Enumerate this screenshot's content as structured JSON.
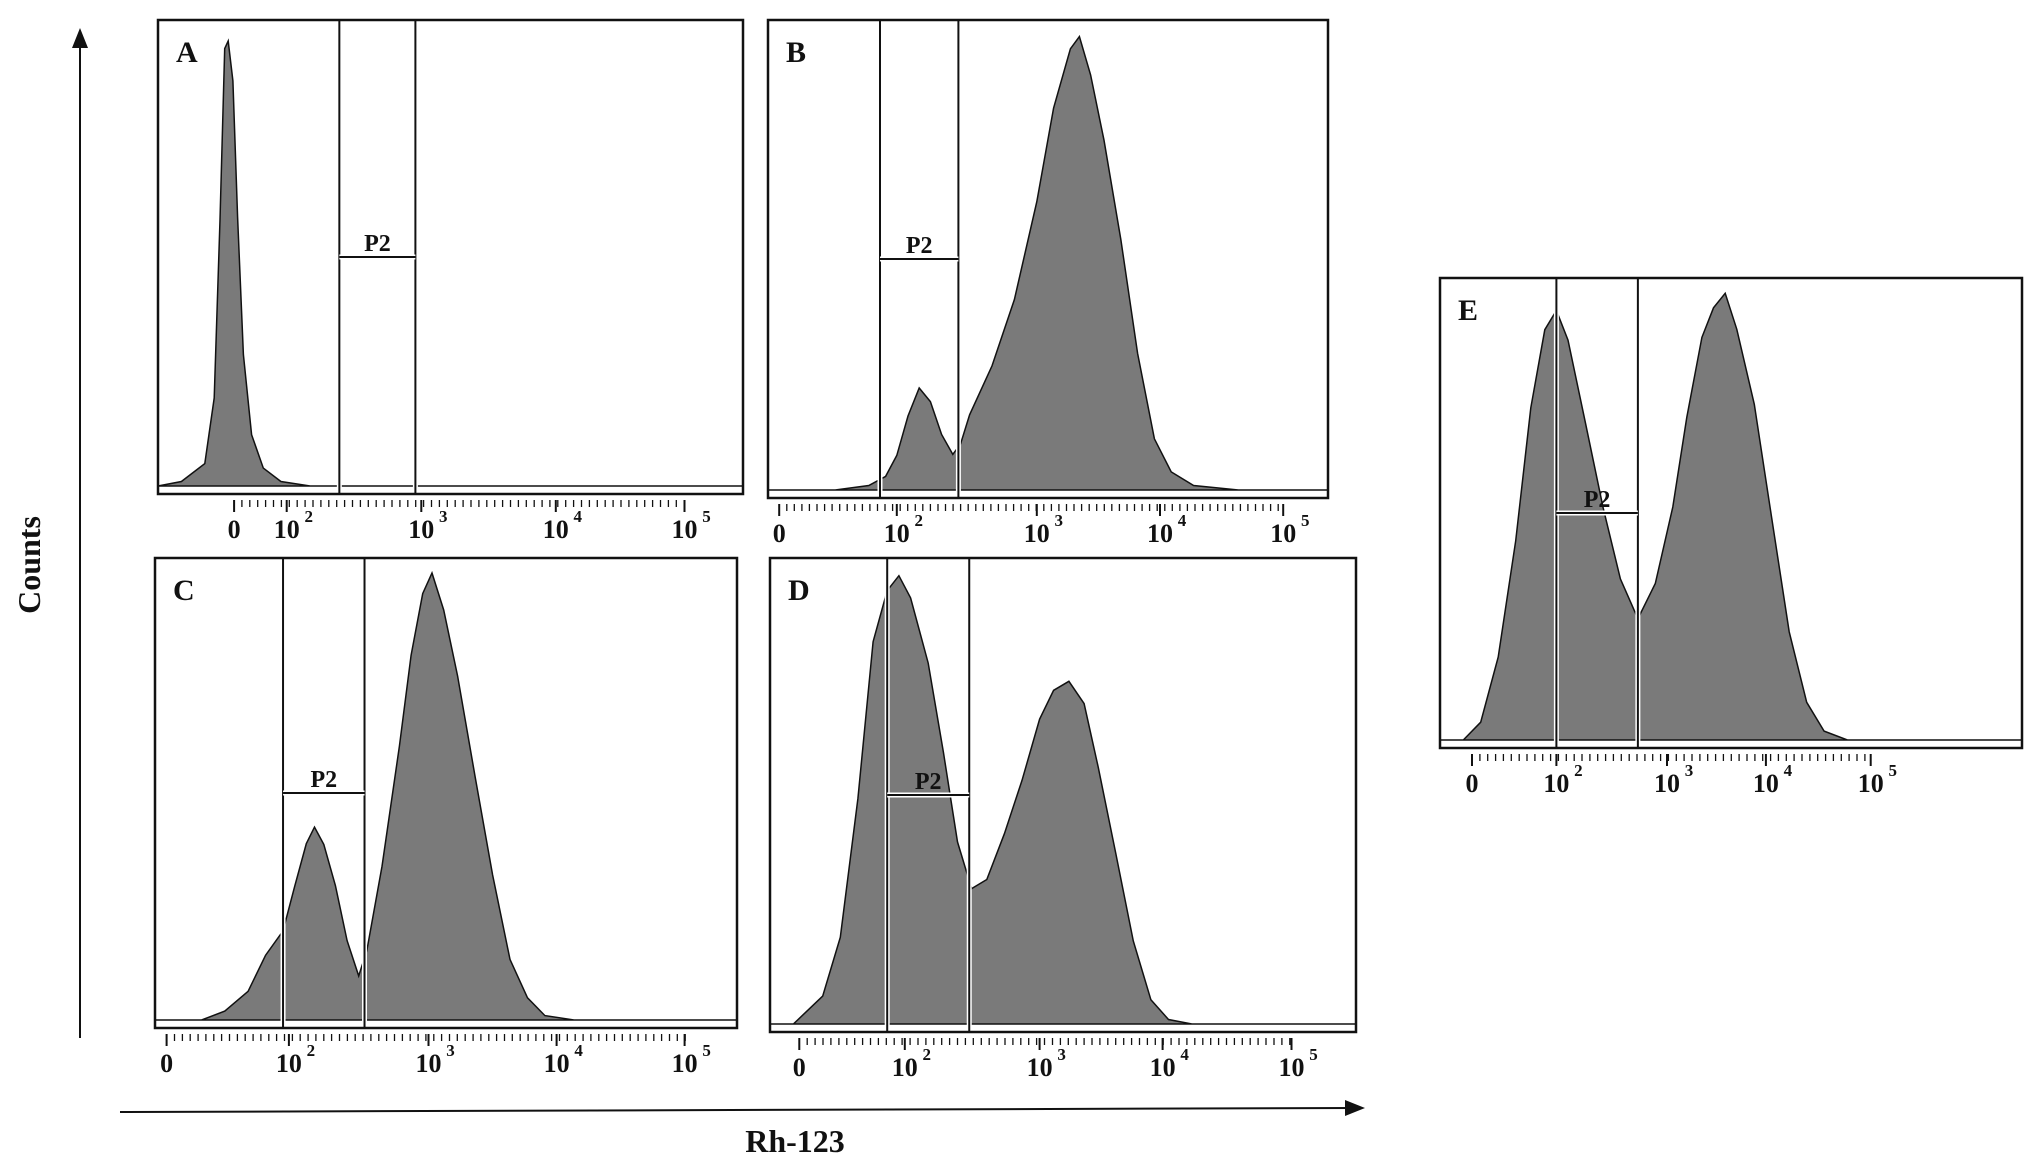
{
  "figure": {
    "xlabel": "Rh-123",
    "ylabel": "Counts"
  },
  "colors": {
    "fill": "#7a7a7a",
    "stroke": "#111111",
    "gate": "#111111"
  },
  "chart_data": [
    {
      "type": "area",
      "panel": "A",
      "gate_label": "P2",
      "x_ticks": [
        "0",
        "10",
        "10",
        "10",
        "10"
      ],
      "x_exponents": [
        "",
        "2",
        "3",
        "4",
        "5"
      ],
      "xlim": [
        0,
        5
      ],
      "ylim": [
        0,
        1
      ],
      "gate": {
        "x_range": [
          1.55,
          2.2
        ],
        "y": 0.5
      },
      "histogram": [
        [
          0.0,
          0.0
        ],
        [
          0.2,
          0.01
        ],
        [
          0.4,
          0.05
        ],
        [
          0.48,
          0.2
        ],
        [
          0.53,
          0.6
        ],
        [
          0.57,
          0.97
        ],
        [
          0.6,
          1.0
        ],
        [
          0.64,
          0.9
        ],
        [
          0.68,
          0.6
        ],
        [
          0.73,
          0.3
        ],
        [
          0.8,
          0.12
        ],
        [
          0.9,
          0.04
        ],
        [
          1.05,
          0.01
        ],
        [
          1.3,
          0.0
        ],
        [
          5.0,
          0.0
        ]
      ]
    },
    {
      "type": "area",
      "panel": "B",
      "gate_label": "P2",
      "x_ticks": [
        "0",
        "10",
        "10",
        "10",
        "10"
      ],
      "x_exponents": [
        "",
        "2",
        "3",
        "4",
        "5"
      ],
      "xlim": [
        0,
        5
      ],
      "ylim": [
        0,
        1
      ],
      "gate": {
        "x_range": [
          1.0,
          1.7
        ],
        "y": 0.5
      },
      "histogram": [
        [
          0.0,
          0.0
        ],
        [
          0.6,
          0.0
        ],
        [
          0.9,
          0.01
        ],
        [
          1.05,
          0.03
        ],
        [
          1.15,
          0.07
        ],
        [
          1.25,
          0.17
        ],
        [
          1.35,
          0.22
        ],
        [
          1.45,
          0.2
        ],
        [
          1.55,
          0.12
        ],
        [
          1.65,
          0.08
        ],
        [
          1.72,
          0.1
        ],
        [
          1.8,
          0.16
        ],
        [
          2.0,
          0.27
        ],
        [
          2.2,
          0.42
        ],
        [
          2.4,
          0.64
        ],
        [
          2.55,
          0.85
        ],
        [
          2.7,
          0.97
        ],
        [
          2.78,
          1.0
        ],
        [
          2.88,
          0.92
        ],
        [
          3.0,
          0.78
        ],
        [
          3.15,
          0.55
        ],
        [
          3.3,
          0.3
        ],
        [
          3.45,
          0.12
        ],
        [
          3.6,
          0.04
        ],
        [
          3.8,
          0.01
        ],
        [
          4.2,
          0.0
        ],
        [
          5.0,
          0.0
        ]
      ]
    },
    {
      "type": "area",
      "panel": "C",
      "gate_label": "P2",
      "x_ticks": [
        "0",
        "10",
        "10",
        "10",
        "10"
      ],
      "x_exponents": [
        "",
        "2",
        "3",
        "4",
        "5"
      ],
      "xlim": [
        0,
        5
      ],
      "ylim": [
        0,
        1
      ],
      "gate": {
        "x_range": [
          1.1,
          1.8
        ],
        "y": 0.5
      },
      "histogram": [
        [
          0.0,
          0.0
        ],
        [
          0.4,
          0.0
        ],
        [
          0.6,
          0.02
        ],
        [
          0.8,
          0.07
        ],
        [
          0.95,
          0.14
        ],
        [
          1.1,
          0.2
        ],
        [
          1.2,
          0.3
        ],
        [
          1.3,
          0.4
        ],
        [
          1.37,
          0.44
        ],
        [
          1.45,
          0.4
        ],
        [
          1.55,
          0.3
        ],
        [
          1.65,
          0.18
        ],
        [
          1.75,
          0.1
        ],
        [
          1.82,
          0.16
        ],
        [
          1.95,
          0.35
        ],
        [
          2.1,
          0.62
        ],
        [
          2.2,
          0.82
        ],
        [
          2.3,
          0.96
        ],
        [
          2.38,
          1.0
        ],
        [
          2.48,
          0.93
        ],
        [
          2.6,
          0.78
        ],
        [
          2.75,
          0.55
        ],
        [
          2.9,
          0.32
        ],
        [
          3.05,
          0.14
        ],
        [
          3.2,
          0.05
        ],
        [
          3.35,
          0.01
        ],
        [
          3.6,
          0.0
        ],
        [
          5.0,
          0.0
        ]
      ]
    },
    {
      "type": "area",
      "panel": "D",
      "gate_label": "P2",
      "x_ticks": [
        "0",
        "10",
        "10",
        "10",
        "10"
      ],
      "x_exponents": [
        "",
        "2",
        "3",
        "4",
        "5"
      ],
      "xlim": [
        0,
        5
      ],
      "ylim": [
        0,
        1
      ],
      "gate": {
        "x_range": [
          1.0,
          1.7
        ],
        "y": 0.5
      },
      "histogram": [
        [
          0.0,
          0.0
        ],
        [
          0.2,
          0.0
        ],
        [
          0.45,
          0.06
        ],
        [
          0.6,
          0.2
        ],
        [
          0.75,
          0.5
        ],
        [
          0.88,
          0.85
        ],
        [
          1.0,
          0.97
        ],
        [
          1.1,
          1.0
        ],
        [
          1.2,
          0.95
        ],
        [
          1.35,
          0.8
        ],
        [
          1.48,
          0.6
        ],
        [
          1.6,
          0.4
        ],
        [
          1.72,
          0.3
        ],
        [
          1.85,
          0.32
        ],
        [
          2.0,
          0.42
        ],
        [
          2.15,
          0.55
        ],
        [
          2.3,
          0.68
        ],
        [
          2.42,
          0.75
        ],
        [
          2.55,
          0.77
        ],
        [
          2.68,
          0.72
        ],
        [
          2.8,
          0.58
        ],
        [
          2.95,
          0.38
        ],
        [
          3.1,
          0.18
        ],
        [
          3.25,
          0.06
        ],
        [
          3.4,
          0.01
        ],
        [
          3.6,
          0.0
        ],
        [
          5.0,
          0.0
        ]
      ]
    },
    {
      "type": "area",
      "panel": "E",
      "gate_label": "P2",
      "x_ticks": [
        "0",
        "10",
        "10",
        "10",
        "10"
      ],
      "x_exponents": [
        "",
        "2",
        "3",
        "4",
        "5"
      ],
      "xlim": [
        0,
        5
      ],
      "ylim": [
        0,
        1
      ],
      "gate": {
        "x_range": [
          1.0,
          1.7
        ],
        "y": 0.5
      },
      "histogram": [
        [
          0.0,
          0.0
        ],
        [
          0.2,
          0.0
        ],
        [
          0.35,
          0.04
        ],
        [
          0.5,
          0.18
        ],
        [
          0.65,
          0.45
        ],
        [
          0.78,
          0.75
        ],
        [
          0.9,
          0.92
        ],
        [
          1.0,
          0.97
        ],
        [
          1.1,
          0.9
        ],
        [
          1.25,
          0.72
        ],
        [
          1.4,
          0.52
        ],
        [
          1.55,
          0.36
        ],
        [
          1.7,
          0.28
        ],
        [
          1.85,
          0.35
        ],
        [
          2.0,
          0.52
        ],
        [
          2.12,
          0.72
        ],
        [
          2.25,
          0.9
        ],
        [
          2.35,
          0.98
        ],
        [
          2.45,
          1.0
        ],
        [
          2.55,
          0.93
        ],
        [
          2.7,
          0.75
        ],
        [
          2.85,
          0.5
        ],
        [
          3.0,
          0.25
        ],
        [
          3.15,
          0.08
        ],
        [
          3.3,
          0.02
        ],
        [
          3.5,
          0.0
        ],
        [
          5.0,
          0.0
        ]
      ]
    }
  ]
}
